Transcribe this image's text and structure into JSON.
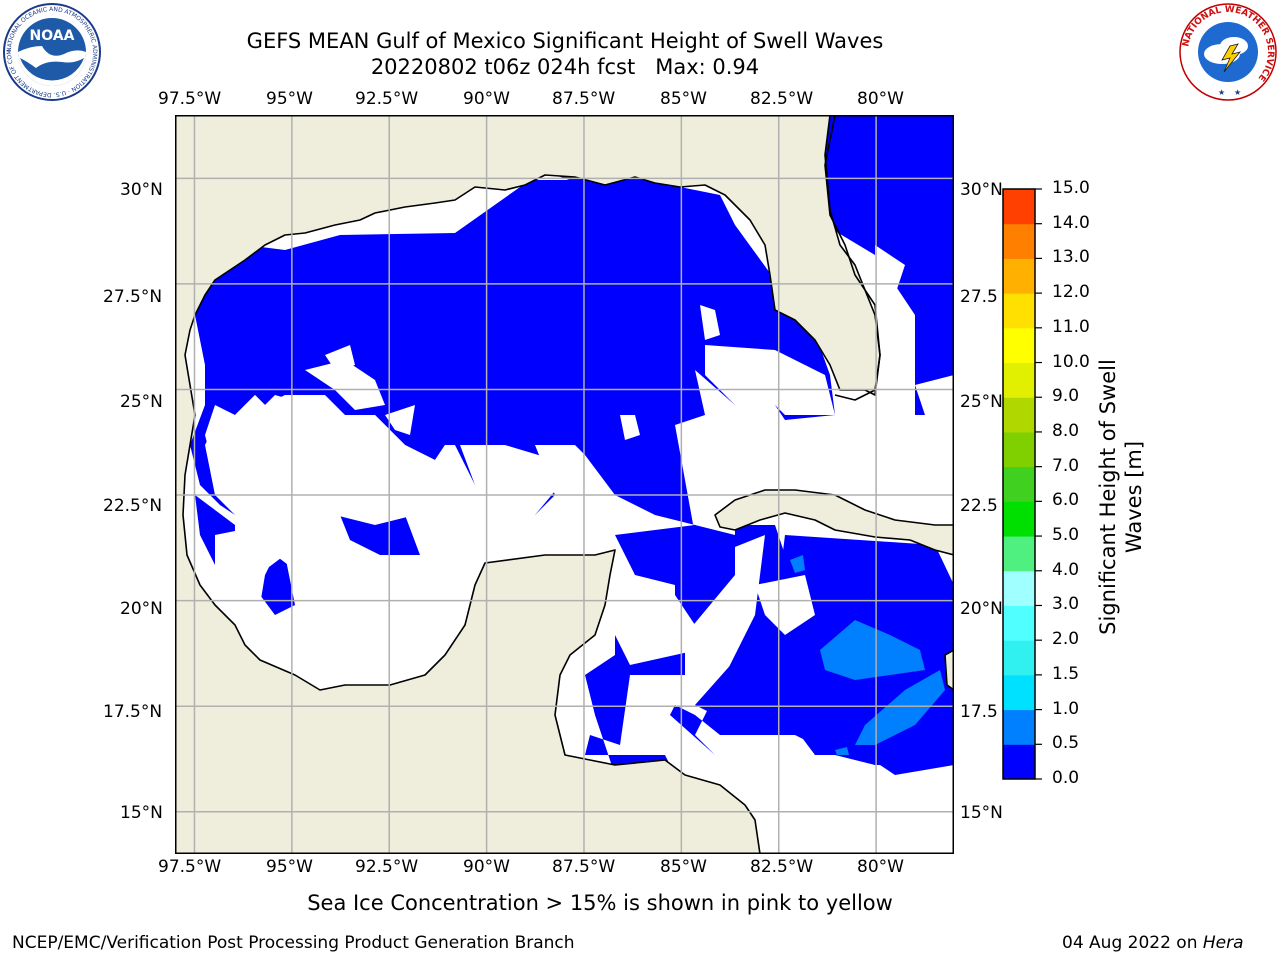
{
  "header": {
    "title_line1": "GEFS MEAN Gulf of Mexico Significant Height of Swell Waves",
    "title_line2": "20220802 t06z 024h fcst   Max: 0.94",
    "logo_left_text": "NOAA",
    "logo_left_ring": "NATIONAL OCEANIC AND ATMOSPHERIC ADMINISTRATION · U.S. DEPARTMENT OF COMMERCE",
    "logo_right_ring": "NATIONAL WEATHER SERVICE"
  },
  "map": {
    "lon_labels": [
      "97.5°W",
      "95°W",
      "92.5°W",
      "90°W",
      "87.5°W",
      "85°W",
      "82.5°W",
      "80°W"
    ],
    "lat_labels": [
      "30°N",
      "27.5°N",
      "25°N",
      "22.5°N",
      "20°N",
      "17.5°N",
      "15°N"
    ],
    "lat_labels_right": [
      "30°N",
      "27.5",
      "25°N",
      "22.5",
      "20°N",
      "17.5",
      "15°N"
    ],
    "lon_range": [
      -98,
      -78
    ],
    "lat_range": [
      14,
      31.5
    ],
    "colors": {
      "land": "#efeedd",
      "swell_0": "#0000ff",
      "swell_05": "#0080ff",
      "grid": "#b0b0b0",
      "open": "#ffffff"
    }
  },
  "colorbar": {
    "label": "Significant Height of Swell Waves [m]",
    "ticks": [
      "0.0",
      "0.5",
      "1.0",
      "1.5",
      "2.0",
      "3.0",
      "4.0",
      "5.0",
      "6.0",
      "7.0",
      "8.0",
      "9.0",
      "10.0",
      "11.0",
      "12.0",
      "13.0",
      "14.0",
      "15.0"
    ],
    "colors": [
      "#0000ff",
      "#0080ff",
      "#00e0ff",
      "#30f0f0",
      "#50ffff",
      "#a0ffff",
      "#50f080",
      "#00e000",
      "#40d020",
      "#80d000",
      "#b0d800",
      "#e0f000",
      "#ffff00",
      "#ffe000",
      "#ffb000",
      "#ff8000",
      "#ff4000",
      "#ff0000"
    ]
  },
  "caption": "Sea Ice Concentration > 15% is shown in pink to yellow",
  "footer": {
    "left": "NCEP/EMC/Verification Post Processing Product Generation Branch",
    "date": "04 Aug 2022 on ",
    "host": "Hera"
  }
}
